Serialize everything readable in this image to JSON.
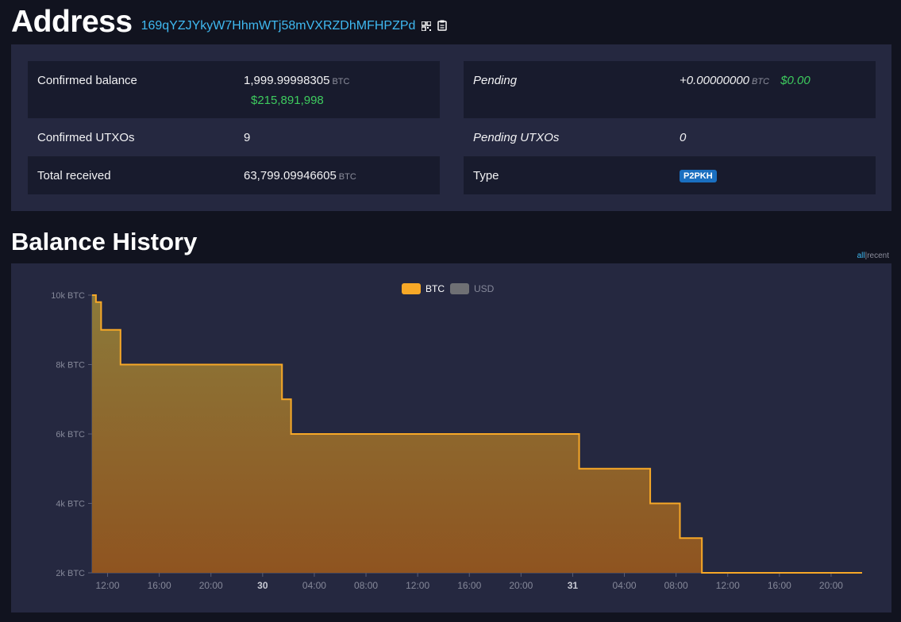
{
  "page": {
    "title": "Address",
    "address": "169qYZJYkyW7HhmWTj58mVXRZDhMFHPZPd",
    "qr_icon": "qr-code-icon",
    "copy_icon": "clipboard-copy-icon"
  },
  "summary": {
    "confirmed_balance": {
      "label": "Confirmed balance",
      "value": "1,999.99998305",
      "unit": "BTC",
      "usd": "$215,891,998"
    },
    "confirmed_utxos": {
      "label": "Confirmed UTXOs",
      "value": "9"
    },
    "total_received": {
      "label": "Total received",
      "value": "63,799.09946605",
      "unit": "BTC"
    },
    "pending": {
      "label": "Pending",
      "value": "+0.00000000",
      "unit": "BTC",
      "usd": "$0.00"
    },
    "pending_utxos": {
      "label": "Pending UTXOs",
      "value": "0"
    },
    "type": {
      "label": "Type",
      "value": "P2PKH"
    }
  },
  "history": {
    "title": "Balance History",
    "range_all": "all",
    "range_sep": "|",
    "range_recent": "recent"
  },
  "colors": {
    "accent": "#3fb9f1",
    "usd_green": "#3ecb5e",
    "btc_line": "#f7a827",
    "usd_legend": "#6f7074",
    "badge": "#1a6fc0"
  },
  "chart_data": {
    "type": "area",
    "title": "",
    "xlabel": "",
    "ylabel": "",
    "legend": [
      {
        "name": "BTC",
        "active": true
      },
      {
        "name": "USD",
        "active": false
      }
    ],
    "legend_position": "top-center",
    "x_ticks": [
      "12:00",
      "16:00",
      "20:00",
      "30",
      "04:00",
      "08:00",
      "12:00",
      "16:00",
      "20:00",
      "31",
      "04:00",
      "08:00",
      "12:00",
      "16:00",
      "20:00"
    ],
    "y_ticks": [
      "10k BTC",
      "8k BTC",
      "6k BTC",
      "4k BTC",
      "2k BTC"
    ],
    "ylim": [
      2000,
      10000
    ],
    "x_unit": "hours",
    "series": [
      {
        "name": "BTC",
        "step": true,
        "points": [
          [
            10.8,
            10000
          ],
          [
            11.1,
            9800
          ],
          [
            11.5,
            9000
          ],
          [
            13.0,
            8000
          ],
          [
            25.5,
            7000
          ],
          [
            26.2,
            6000
          ],
          [
            48.5,
            5000
          ],
          [
            54.0,
            4000
          ],
          [
            56.3,
            3000
          ],
          [
            58.0,
            2000
          ],
          [
            70.4,
            2000
          ]
        ]
      }
    ]
  }
}
